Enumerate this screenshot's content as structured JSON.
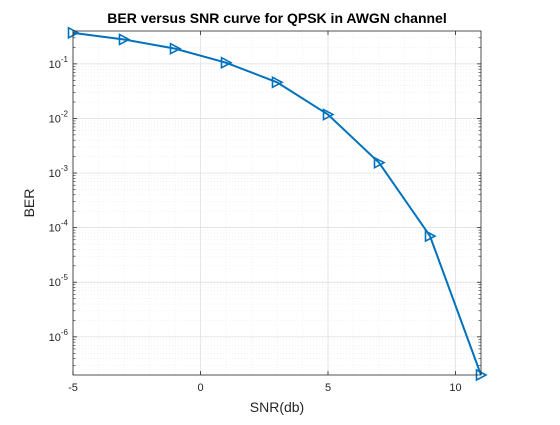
{
  "chart_data": {
    "type": "line",
    "title": "BER versus SNR curve for QPSK in AWGN channel",
    "xlabel": "SNR(db)",
    "ylabel": "BER",
    "x": [
      -5,
      -3,
      -1,
      1,
      3,
      5,
      7,
      9,
      11
    ],
    "series": [
      {
        "values": [
          0.37,
          0.28,
          0.19,
          0.105,
          0.046,
          0.0118,
          0.00155,
          7e-05,
          2e-07
        ],
        "color": "#0072bd",
        "marker": "triangle-right"
      }
    ],
    "xlim": [
      -5,
      11
    ],
    "ylim": [
      2e-07,
      0.4
    ],
    "yscale": "log",
    "xticks": [
      -5,
      0,
      5,
      10
    ],
    "xtick_labels": [
      "-5",
      "0",
      "5",
      "10"
    ],
    "yticks": [
      {
        "value": 0.1,
        "base": "10",
        "exp": "-1"
      },
      {
        "value": 0.01,
        "base": "10",
        "exp": "-2"
      },
      {
        "value": 0.001,
        "base": "10",
        "exp": "-3"
      },
      {
        "value": 0.0001,
        "base": "10",
        "exp": "-4"
      },
      {
        "value": 1e-05,
        "base": "10",
        "exp": "-5"
      },
      {
        "value": 1e-06,
        "base": "10",
        "exp": "-6"
      }
    ],
    "grid": true,
    "minor_grid": true
  }
}
